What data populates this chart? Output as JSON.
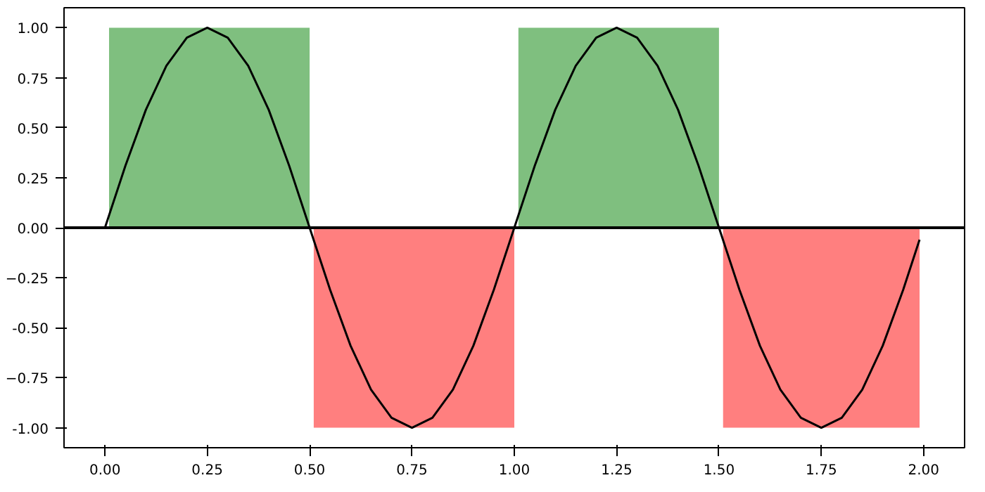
{
  "chart_data": {
    "type": "line",
    "xlim": [
      -0.1,
      2.1
    ],
    "ylim": [
      -1.1,
      1.1
    ],
    "xticks": [
      {
        "value": 0,
        "label": "0.00"
      },
      0.25,
      {
        "value": 0.5,
        "label": "0.50"
      },
      0.75,
      {
        "value": 1,
        "label": "1.00"
      },
      1.25,
      {
        "value": 1.5,
        "label": "1.50"
      },
      1.75,
      {
        "value": 2,
        "label": "2.00"
      }
    ],
    "yticks": [
      {
        "value": -1,
        "label": "-1.00"
      },
      -0.75,
      {
        "value": -0.5,
        "label": "-0.50"
      },
      -0.25,
      {
        "value": 0,
        "label": "0.00"
      },
      0.25,
      {
        "value": 0.5,
        "label": "0.50"
      },
      0.75,
      {
        "value": 1,
        "label": "1.00"
      }
    ],
    "grid": false,
    "series": [
      {
        "type": "area",
        "color": "#7fbf7f",
        "x": [
          0.01,
          0.5
        ],
        "values": [
          1,
          1
        ]
      },
      {
        "type": "area",
        "color": "#ff7f7f",
        "x": [
          0.51,
          1.0
        ],
        "values": [
          -1,
          -1
        ]
      },
      {
        "type": "area",
        "color": "#7fbf7f",
        "x": [
          1.01,
          1.5
        ],
        "values": [
          1,
          1
        ]
      },
      {
        "type": "area",
        "color": "#ff7f7f",
        "x": [
          1.51,
          1.99
        ],
        "values": [
          -1,
          -1
        ]
      },
      {
        "color": "#000000",
        "x": [
          0,
          0.05,
          0.1,
          0.15,
          0.2,
          0.25,
          0.3,
          0.35,
          0.4,
          0.45,
          0.5,
          0.55,
          0.6,
          0.65,
          0.7,
          0.75,
          0.8,
          0.85,
          0.9,
          0.95,
          1.0,
          1.05,
          1.1,
          1.15,
          1.2,
          1.25,
          1.3,
          1.35,
          1.4,
          1.45,
          1.5,
          1.55,
          1.6,
          1.65,
          1.7,
          1.75,
          1.8,
          1.85,
          1.9,
          1.95,
          1.99
        ],
        "values": [
          0,
          0.31,
          0.59,
          0.81,
          0.95,
          1,
          0.95,
          0.81,
          0.59,
          0.31,
          0,
          -0.31,
          -0.59,
          -0.81,
          -0.95,
          -1,
          -0.95,
          -0.81,
          -0.59,
          -0.31,
          0,
          0.31,
          0.59,
          0.81,
          0.95,
          1,
          0.95,
          0.81,
          0.59,
          0.31,
          0,
          -0.31,
          -0.59,
          -0.81,
          -0.95,
          -1,
          -0.95,
          -0.81,
          -0.59,
          -0.31,
          -0.06
        ]
      }
    ],
    "ref_lines": [
      {
        "axis": "y",
        "value": 0,
        "color": "#000000",
        "line_style": "solid"
      }
    ]
  }
}
